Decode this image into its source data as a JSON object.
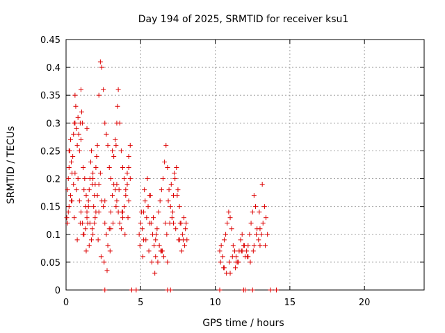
{
  "chart_data": {
    "type": "scatter",
    "title": "Day 194 of 2025, SRMTID for receiver ksu1",
    "xlabel": "GPS time / hours",
    "ylabel": "SRMTID / TECUs",
    "xlim": [
      0,
      24
    ],
    "ylim": [
      0,
      0.45
    ],
    "xticks": [
      "0",
      "5",
      "10",
      "15",
      "20"
    ],
    "xtick_values": [
      0,
      5,
      10,
      15,
      20
    ],
    "yticks": [
      "0",
      "0.05",
      "0.1",
      "0.15",
      "0.2",
      "0.25",
      "0.3",
      "0.35",
      "0.4",
      "0.45"
    ],
    "ytick_values": [
      0,
      0.05,
      0.1,
      0.15,
      0.2,
      0.25,
      0.3,
      0.35,
      0.4,
      0.45
    ],
    "grid": true,
    "marker": "+",
    "color": "#dd0000",
    "series": [
      {
        "name": "SRMTID",
        "x": [
          0.05,
          0.1,
          0.15,
          0.2,
          0.25,
          0.3,
          0.35,
          0.4,
          0.45,
          0.5,
          0.55,
          0.6,
          0.65,
          0.7,
          0.75,
          0.8,
          0.85,
          0.9,
          0.95,
          1.0,
          1.05,
          1.1,
          1.15,
          1.2,
          1.25,
          1.3,
          1.35,
          1.4,
          1.45,
          1.5,
          1.55,
          1.6,
          1.65,
          1.7,
          1.75,
          1.8,
          1.85,
          1.9,
          1.95,
          2.0,
          2.05,
          2.1,
          2.2,
          2.3,
          2.4,
          2.5,
          2.6,
          2.7,
          2.8,
          2.9,
          3.0,
          3.1,
          3.2,
          3.3,
          3.35,
          3.4,
          3.45,
          3.5,
          3.6,
          3.7,
          3.8,
          3.9,
          4.0,
          4.1,
          4.2,
          4.3,
          0.1,
          0.2,
          0.3,
          0.4,
          0.5,
          0.6,
          0.7,
          0.8,
          0.9,
          1.0,
          1.1,
          1.2,
          1.3,
          1.4,
          1.5,
          1.6,
          1.7,
          1.8,
          1.9,
          2.0,
          2.1,
          2.2,
          2.3,
          2.4,
          2.5,
          2.6,
          2.7,
          2.8,
          2.9,
          3.0,
          3.1,
          3.2,
          3.3,
          3.4,
          3.5,
          3.6,
          3.7,
          3.8,
          3.9,
          4.0,
          4.1,
          4.2,
          4.3,
          0.15,
          0.35,
          0.55,
          0.75,
          0.95,
          1.15,
          1.35,
          1.55,
          1.75,
          1.95,
          2.15,
          2.35,
          2.55,
          2.75,
          2.95,
          3.15,
          3.35,
          3.55,
          3.75,
          3.95,
          4.15,
          4.9,
          5.0,
          5.1,
          5.2,
          5.3,
          5.4,
          5.5,
          5.6,
          5.7,
          5.8,
          5.9,
          6.0,
          6.1,
          6.2,
          6.3,
          6.4,
          6.5,
          6.6,
          6.7,
          6.8,
          6.9,
          7.0,
          7.1,
          7.2,
          7.3,
          7.4,
          7.5,
          7.6,
          7.7,
          7.8,
          7.9,
          8.0,
          8.1,
          4.95,
          5.15,
          5.35,
          5.55,
          5.75,
          5.95,
          6.15,
          6.35,
          6.55,
          6.75,
          6.95,
          7.15,
          7.35,
          7.55,
          7.75,
          7.95,
          5.05,
          5.25,
          5.45,
          5.65,
          5.85,
          6.05,
          6.25,
          6.45,
          6.65,
          6.85,
          7.05,
          7.25,
          7.45,
          7.65,
          7.85,
          8.05,
          10.3,
          10.4,
          10.5,
          10.6,
          10.7,
          10.8,
          10.9,
          11.0,
          11.1,
          11.2,
          11.3,
          11.4,
          11.5,
          11.6,
          11.7,
          11.8,
          11.9,
          12.0,
          12.1,
          12.2,
          12.3,
          12.4,
          12.5,
          12.6,
          12.7,
          12.8,
          12.9,
          13.0,
          13.1,
          13.2,
          13.3,
          13.4,
          13.5,
          10.35,
          10.55,
          10.75,
          10.95,
          11.15,
          11.35,
          11.55,
          11.75,
          11.95,
          12.15,
          12.35,
          12.55,
          12.75,
          12.95,
          13.15,
          13.35,
          0.2,
          0.6,
          1.0,
          1.4,
          1.8,
          2.2,
          2.6,
          3.0,
          3.4,
          3.8,
          4.2,
          5.2,
          5.6,
          6.0,
          6.4,
          6.8,
          7.2,
          7.6,
          10.6,
          11.0,
          11.4,
          11.8,
          12.2,
          12.6,
          13.0,
          2.6,
          4.4,
          4.7,
          6.8,
          7.0,
          10.3,
          11.9,
          12.0,
          12.5,
          13.7,
          14.1
        ],
        "y": [
          0.13,
          0.18,
          0.2,
          0.22,
          0.25,
          0.27,
          0.23,
          0.21,
          0.24,
          0.28,
          0.3,
          0.35,
          0.33,
          0.29,
          0.26,
          0.31,
          0.28,
          0.25,
          0.3,
          0.27,
          0.32,
          0.3,
          0.22,
          0.18,
          0.2,
          0.15,
          0.17,
          0.14,
          0.12,
          0.16,
          0.18,
          0.2,
          0.23,
          0.25,
          0.19,
          0.21,
          0.15,
          0.17,
          0.19,
          0.22,
          0.24,
          0.26,
          0.35,
          0.41,
          0.4,
          0.36,
          0.3,
          0.28,
          0.26,
          0.22,
          0.2,
          0.25,
          0.24,
          0.27,
          0.26,
          0.3,
          0.33,
          0.36,
          0.3,
          0.25,
          0.22,
          0.2,
          0.18,
          0.21,
          0.24,
          0.26,
          0.12,
          0.15,
          0.17,
          0.16,
          0.19,
          0.21,
          0.18,
          0.2,
          0.16,
          0.14,
          0.12,
          0.1,
          0.11,
          0.13,
          0.15,
          0.12,
          0.09,
          0.1,
          0.12,
          0.14,
          0.17,
          0.19,
          0.21,
          0.16,
          0.15,
          0.12,
          0.1,
          0.08,
          0.11,
          0.14,
          0.17,
          0.19,
          0.18,
          0.16,
          0.14,
          0.12,
          0.11,
          0.13,
          0.15,
          0.17,
          0.19,
          0.22,
          0.2,
          0.14,
          0.16,
          0.13,
          0.09,
          0.12,
          0.1,
          0.07,
          0.08,
          0.11,
          0.13,
          0.09,
          0.06,
          0.05,
          0.035,
          0.07,
          0.12,
          0.15,
          0.18,
          0.14,
          0.1,
          0.13,
          0.1,
          0.12,
          0.11,
          0.14,
          0.16,
          0.13,
          0.15,
          0.17,
          0.12,
          0.1,
          0.08,
          0.09,
          0.11,
          0.14,
          0.16,
          0.18,
          0.2,
          0.23,
          0.26,
          0.22,
          0.18,
          0.15,
          0.13,
          0.17,
          0.2,
          0.22,
          0.18,
          0.15,
          0.12,
          0.1,
          0.13,
          0.11,
          0.09,
          0.08,
          0.06,
          0.09,
          0.07,
          0.05,
          0.03,
          0.05,
          0.07,
          0.06,
          0.1,
          0.12,
          0.14,
          0.11,
          0.09,
          0.07,
          0.08,
          0.14,
          0.18,
          0.2,
          0.17,
          0.13,
          0.1,
          0.08,
          0.07,
          0.12,
          0.16,
          0.19,
          0.21,
          0.17,
          0.12,
          0.09,
          0.12,
          0.07,
          0.08,
          0.06,
          0.09,
          0.1,
          0.12,
          0.14,
          0.13,
          0.11,
          0.08,
          0.07,
          0.06,
          0.05,
          0.07,
          0.09,
          0.1,
          0.08,
          0.06,
          0.07,
          0.08,
          0.1,
          0.12,
          0.14,
          0.17,
          0.15,
          0.11,
          0.09,
          0.08,
          0.1,
          0.12,
          0.15,
          0.13,
          0.1,
          0.05,
          0.04,
          0.03,
          0.05,
          0.06,
          0.04,
          0.05,
          0.07,
          0.08,
          0.06,
          0.05,
          0.07,
          0.1,
          0.14,
          0.19,
          0.08,
          0.25,
          0.3,
          0.36,
          0.29,
          0.2,
          0.14,
          0.16,
          0.11,
          0.19,
          0.14,
          0.16,
          0.09,
          0.12,
          0.06,
          0.07,
          0.05,
          0.12,
          0.09,
          0.04,
          0.03,
          0.05,
          0.07,
          0.06,
          0.08,
          0.11,
          0,
          0,
          0,
          0,
          0,
          0,
          0,
          0,
          0,
          0,
          0
        ]
      }
    ]
  }
}
